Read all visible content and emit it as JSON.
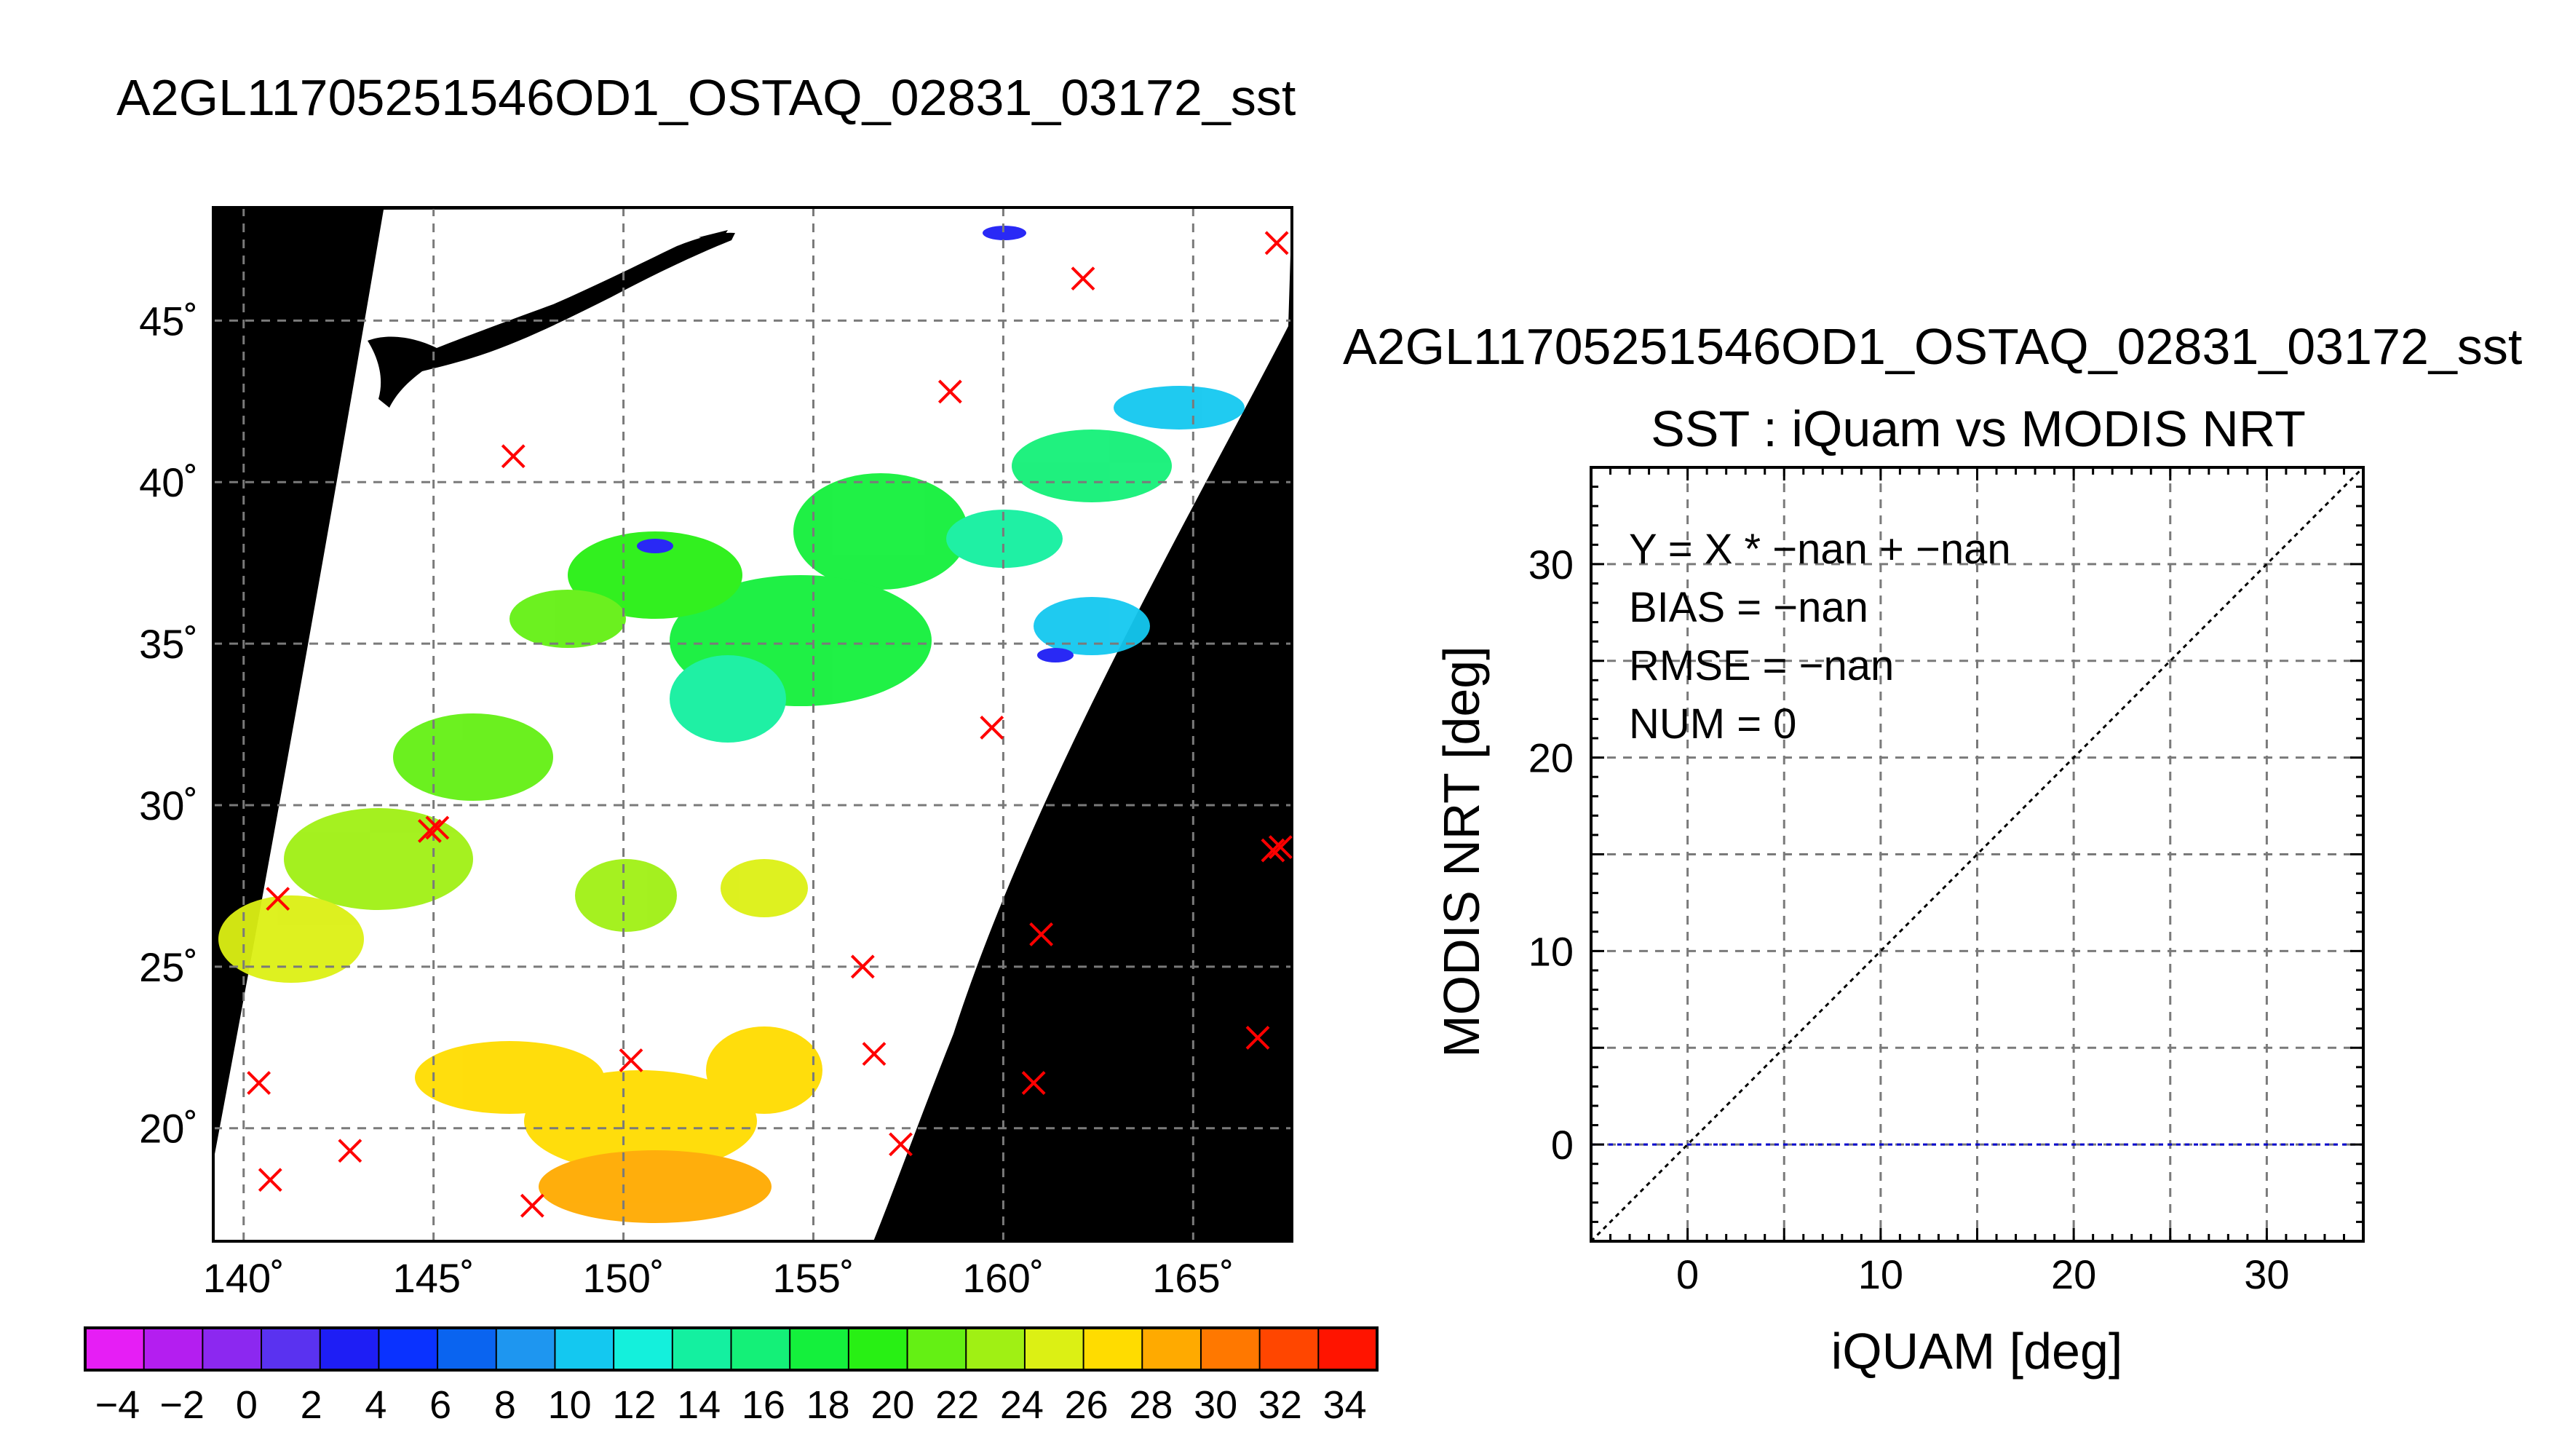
{
  "map": {
    "title": "A2GL11705251546OD1_OSTAQ_02831_03172_sst",
    "lat_ticks": [
      "20˚",
      "25˚",
      "30˚",
      "35˚",
      "40˚",
      "45˚"
    ],
    "lon_ticks": [
      "140˚",
      "145˚",
      "150˚",
      "155˚",
      "160˚",
      "165˚"
    ],
    "colorbar_labels": [
      "−4",
      "−2",
      "0",
      "2",
      "4",
      "6",
      "8",
      "10",
      "12",
      "14",
      "16",
      "18",
      "20",
      "22",
      "24",
      "26",
      "28",
      "30",
      "32",
      "34"
    ],
    "colorbar_colors": [
      "#e61ef5",
      "#b41ef0",
      "#8c28f0",
      "#5a32f0",
      "#1e1ef5",
      "#0a32ff",
      "#0a64f0",
      "#1e96f0",
      "#14c8f0",
      "#14f0dc",
      "#14f0a0",
      "#14f078",
      "#14f03c",
      "#28f014",
      "#64f014",
      "#a0f014",
      "#dcf014",
      "#ffdc00",
      "#ffaa00",
      "#ff7800",
      "#ff4600",
      "#ff1400"
    ],
    "land_color": "#000000",
    "marker_color": "#ff0000"
  },
  "scatter": {
    "title_line1": "A2GL11705251546OD1_OSTAQ_02831_03172_sst",
    "title_line2": "SST : iQuam vs MODIS NRT",
    "annotations": [
      "Y = X * −nan + −nan",
      "BIAS = −nan",
      "RMSE = −nan",
      "NUM = 0"
    ],
    "zero_line_color": "#0000cc"
  },
  "chart_data": [
    {
      "type": "scatter",
      "title": "A2GL11705251546OD1_OSTAQ_02831_03172_sst",
      "description_kind": "map",
      "xlim": [
        139.2,
        167.6
      ],
      "ylim": [
        16.5,
        48.5
      ],
      "xticks": [
        140,
        145,
        150,
        155,
        160,
        165
      ],
      "yticks": [
        20,
        25,
        30,
        35,
        40,
        45
      ],
      "grid": true,
      "colorbar": {
        "min": -5,
        "max": 35,
        "step": 2,
        "tick_labels": [
          "−4",
          "−2",
          "0",
          "2",
          "4",
          "6",
          "8",
          "10",
          "12",
          "14",
          "16",
          "18",
          "20",
          "22",
          "24",
          "26",
          "28",
          "30",
          "32",
          "34"
        ]
      },
      "markers": [
        {
          "lon": 167.2,
          "lat": 47.4
        },
        {
          "lon": 162.1,
          "lat": 46.3
        },
        {
          "lon": 158.6,
          "lat": 42.8
        },
        {
          "lon": 147.1,
          "lat": 40.8
        },
        {
          "lon": 159.7,
          "lat": 32.4
        },
        {
          "lon": 145.1,
          "lat": 29.3
        },
        {
          "lon": 144.9,
          "lat": 29.2
        },
        {
          "lon": 140.9,
          "lat": 27.1
        },
        {
          "lon": 161.0,
          "lat": 26.0
        },
        {
          "lon": 156.3,
          "lat": 25.0
        },
        {
          "lon": 156.6,
          "lat": 22.3
        },
        {
          "lon": 150.2,
          "lat": 22.1
        },
        {
          "lon": 166.7,
          "lat": 22.8
        },
        {
          "lon": 140.4,
          "lat": 21.4
        },
        {
          "lon": 160.8,
          "lat": 21.4
        },
        {
          "lon": 157.3,
          "lat": 19.5
        },
        {
          "lon": 142.8,
          "lat": 19.3
        },
        {
          "lon": 140.7,
          "lat": 18.4
        },
        {
          "lon": 147.6,
          "lat": 17.6
        },
        {
          "lon": 167.3,
          "lat": 28.7
        },
        {
          "lon": 167.1,
          "lat": 28.6
        }
      ]
    },
    {
      "type": "scatter",
      "title": "SST : iQuam vs MODIS NRT",
      "xlabel": "iQUAM [deg]",
      "ylabel": "MODIS NRT [deg]",
      "xlim": [
        -5,
        35
      ],
      "ylim": [
        -5,
        35
      ],
      "xticks": [
        0,
        10,
        20,
        30
      ],
      "yticks": [
        0,
        10,
        20,
        30
      ],
      "grid": true,
      "points": [],
      "reference_lines": [
        {
          "name": "Y = X",
          "x": [
            -5,
            35
          ],
          "y": [
            -5,
            35
          ]
        },
        {
          "name": "Y = 0",
          "x": [
            -5,
            35
          ],
          "y": [
            0,
            0
          ]
        }
      ]
    }
  ]
}
